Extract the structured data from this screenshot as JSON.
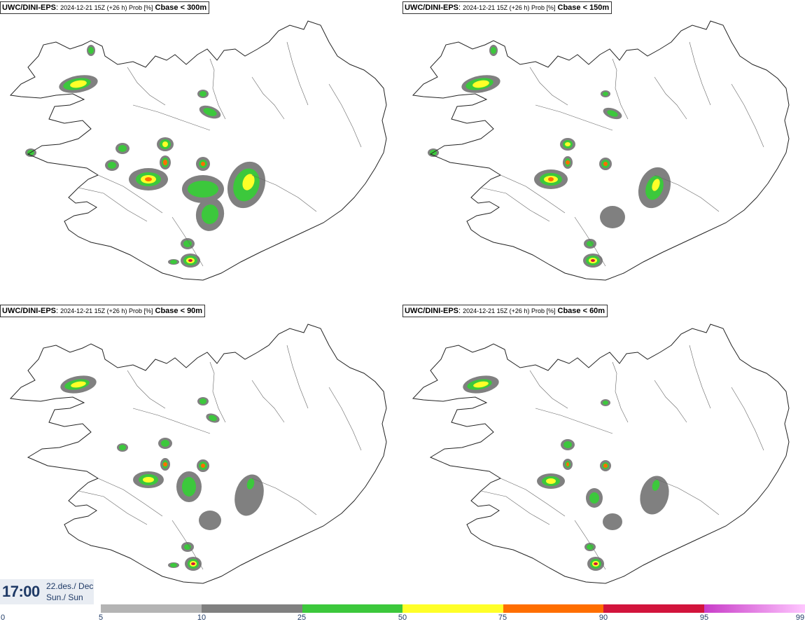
{
  "panels": [
    {
      "model": "UWC/DINI-EPS",
      "meta": "2024-12-21 15Z (+26 h) Prob [%]",
      "param": "Cbase < 300m"
    },
    {
      "model": "UWC/DINI-EPS",
      "meta": "2024-12-21 15Z (+26 h) Prob [%]",
      "param": "Cbase < 150m"
    },
    {
      "model": "UWC/DINI-EPS",
      "meta": "2024-12-21 15Z (+26 h) Prob [%]",
      "param": "Cbase < 90m"
    },
    {
      "model": "UWC/DINI-EPS",
      "meta": "2024-12-21 15Z (+26 h) Prob [%]",
      "param": "Cbase < 60m"
    }
  ],
  "valid_time": {
    "time": "17:00",
    "date": "22.des./ Dec",
    "weekday": "Sun./ Sun"
  },
  "colorbar": {
    "labels": [
      "0",
      "5",
      "10",
      "25",
      "50",
      "75",
      "90",
      "95",
      "99"
    ],
    "segments": [
      {
        "from": "5",
        "to": "10",
        "color": "#b4b4b4"
      },
      {
        "from": "10",
        "to": "25",
        "color": "#808080"
      },
      {
        "from": "25",
        "to": "50",
        "color": "#3cc83c"
      },
      {
        "from": "50",
        "to": "75",
        "color": "#ffff28"
      },
      {
        "from": "75",
        "to": "90",
        "color": "#ff6e00"
      },
      {
        "from": "90",
        "to": "95",
        "color": "#d2143c"
      },
      {
        "from": "95",
        "to": "99",
        "color": "#c83cc8",
        "color_end": "#ffc8ff"
      }
    ]
  }
}
